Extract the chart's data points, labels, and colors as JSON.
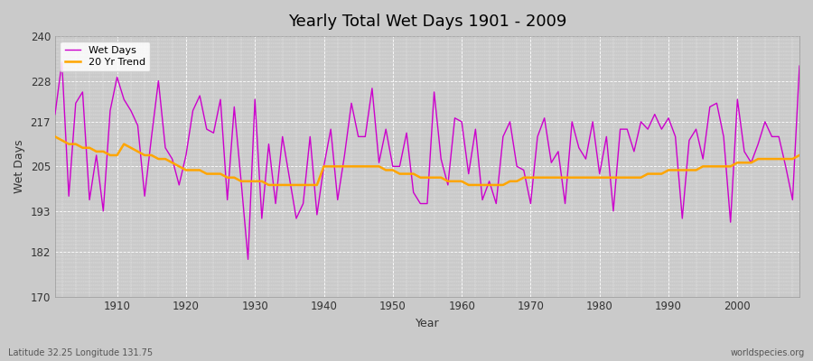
{
  "title": "Yearly Total Wet Days 1901 - 2009",
  "xlabel": "Year",
  "ylabel": "Wet Days",
  "subtitle": "Latitude 32.25 Longitude 131.75",
  "watermark": "worldspecies.org",
  "wet_days_color": "#CC00CC",
  "trend_color": "#FFA500",
  "background_color": "#CACACA",
  "plot_bg_color": "#CACACA",
  "ylim": [
    170,
    240
  ],
  "yticks": [
    170,
    182,
    193,
    205,
    217,
    228,
    240
  ],
  "xticks": [
    1910,
    1920,
    1930,
    1940,
    1950,
    1960,
    1970,
    1980,
    1990,
    2000
  ],
  "years": [
    1901,
    1902,
    1903,
    1904,
    1905,
    1906,
    1907,
    1908,
    1909,
    1910,
    1911,
    1912,
    1913,
    1914,
    1915,
    1916,
    1917,
    1918,
    1919,
    1920,
    1921,
    1922,
    1923,
    1924,
    1925,
    1926,
    1927,
    1928,
    1929,
    1930,
    1931,
    1932,
    1933,
    1934,
    1935,
    1936,
    1937,
    1938,
    1939,
    1940,
    1941,
    1942,
    1943,
    1944,
    1945,
    1946,
    1947,
    1948,
    1949,
    1950,
    1951,
    1952,
    1953,
    1954,
    1955,
    1956,
    1957,
    1958,
    1959,
    1960,
    1961,
    1962,
    1963,
    1964,
    1965,
    1966,
    1967,
    1968,
    1969,
    1970,
    1971,
    1972,
    1973,
    1974,
    1975,
    1976,
    1977,
    1978,
    1979,
    1980,
    1981,
    1982,
    1983,
    1984,
    1985,
    1986,
    1987,
    1988,
    1989,
    1990,
    1991,
    1992,
    1993,
    1994,
    1995,
    1996,
    1997,
    1998,
    1999,
    2000,
    2001,
    2002,
    2003,
    2004,
    2005,
    2006,
    2007,
    2008,
    2009
  ],
  "wet_days": [
    219,
    233,
    197,
    222,
    225,
    196,
    208,
    193,
    220,
    229,
    223,
    220,
    216,
    197,
    213,
    228,
    210,
    207,
    200,
    208,
    220,
    224,
    215,
    214,
    223,
    196,
    221,
    201,
    180,
    223,
    191,
    211,
    195,
    213,
    202,
    191,
    195,
    213,
    192,
    205,
    215,
    196,
    208,
    222,
    213,
    213,
    226,
    206,
    215,
    205,
    205,
    214,
    198,
    195,
    195,
    225,
    207,
    200,
    218,
    217,
    203,
    215,
    196,
    201,
    195,
    213,
    217,
    205,
    204,
    195,
    213,
    218,
    206,
    209,
    195,
    217,
    210,
    207,
    217,
    203,
    213,
    193,
    215,
    215,
    209,
    217,
    215,
    219,
    215,
    218,
    213,
    191,
    212,
    215,
    207,
    221,
    222,
    213,
    190,
    223,
    209,
    206,
    211,
    217,
    213,
    213,
    205,
    196,
    232
  ],
  "trend": [
    213,
    212,
    211,
    211,
    210,
    210,
    209,
    209,
    208,
    208,
    211,
    210,
    209,
    208,
    208,
    207,
    207,
    206,
    205,
    204,
    204,
    204,
    203,
    203,
    203,
    202,
    202,
    201,
    201,
    201,
    201,
    200,
    200,
    200,
    200,
    200,
    200,
    200,
    200,
    205,
    205,
    205,
    205,
    205,
    205,
    205,
    205,
    205,
    204,
    204,
    203,
    203,
    203,
    202,
    202,
    202,
    202,
    201,
    201,
    201,
    200,
    200,
    200,
    200,
    200,
    200,
    201,
    201,
    202,
    202,
    202,
    202,
    202,
    202,
    202,
    202,
    202,
    202,
    202,
    202,
    202,
    202,
    202,
    202,
    202,
    202,
    203,
    203,
    203,
    204,
    204,
    204,
    204,
    204,
    205,
    205,
    205,
    205,
    205,
    206,
    206,
    206,
    207,
    207,
    207,
    207,
    207,
    207,
    208
  ]
}
